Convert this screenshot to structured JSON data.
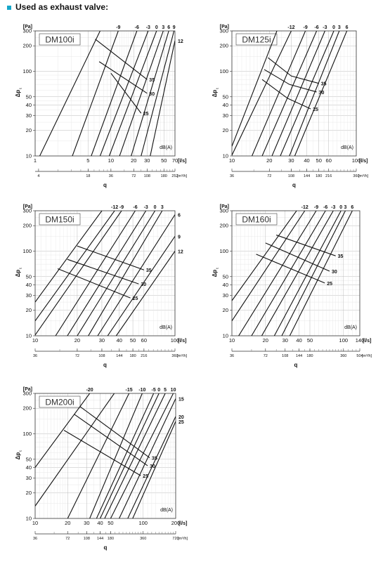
{
  "header": {
    "title": "Used as exhaust valve:",
    "accent_color": "#16a6c9"
  },
  "chart_data": [
    {
      "type": "line",
      "title": "DM100i",
      "ylabel": "Δp t",
      "yunit": "[Pa]",
      "xlabel": "q",
      "xunit": "[l/s]",
      "xunit2": "[m³/h]",
      "ylim": [
        10,
        300
      ],
      "xlim": [
        1,
        70
      ],
      "log": true,
      "yticks": [
        10,
        20,
        30,
        40,
        50,
        100,
        200,
        300
      ],
      "xticks": [
        1,
        5,
        10,
        20,
        30,
        50,
        70
      ],
      "xticks2": [
        {
          "q": 1.11,
          "label": "4"
        },
        {
          "q": 5,
          "label": "18"
        },
        {
          "q": 10,
          "label": "36"
        },
        {
          "q": 20,
          "label": "72"
        },
        {
          "q": 30,
          "label": "108"
        },
        {
          "q": 50,
          "label": "180"
        },
        {
          "q": 70,
          "label": "252"
        }
      ],
      "damper_label": "dB(A)",
      "setting_lines": [
        {
          "label": "",
          "points": [
            [
              1.15,
              10
            ],
            [
              7.2,
              300
            ]
          ]
        },
        {
          "label": "-9",
          "points": [
            [
              3.1,
              10
            ],
            [
              12.5,
              300
            ]
          ]
        },
        {
          "label": "-6",
          "points": [
            [
              5.5,
              10
            ],
            [
              22,
              300
            ]
          ]
        },
        {
          "label": "-3",
          "points": [
            [
              7.2,
              10
            ],
            [
              31,
              300
            ]
          ]
        },
        {
          "label": "0",
          "points": [
            [
              9.5,
              10
            ],
            [
              40,
              300
            ]
          ]
        },
        {
          "label": "3",
          "points": [
            [
              13,
              10
            ],
            [
              49,
              300
            ]
          ]
        },
        {
          "label": "6",
          "points": [
            [
              18.5,
              10
            ],
            [
              58,
              300
            ]
          ]
        },
        {
          "label": "9",
          "points": [
            [
              25,
              10
            ],
            [
              68,
              300
            ]
          ]
        },
        {
          "label": "12",
          "points": [
            [
              33,
              10
            ],
            [
              70,
              230
            ]
          ]
        }
      ],
      "noise_curves": [
        {
          "label": "35",
          "points": [
            [
              6.2,
              240
            ],
            [
              30,
              80
            ]
          ]
        },
        {
          "label": "30",
          "points": [
            [
              7,
              130
            ],
            [
              30,
              55
            ]
          ]
        },
        {
          "label": "25",
          "points": [
            [
              10,
              95
            ],
            [
              25,
              32
            ]
          ]
        }
      ]
    },
    {
      "type": "line",
      "title": "DM125i",
      "ylabel": "Δp t",
      "yunit": "[Pa]",
      "xlabel": "q",
      "xunit": "[l/s]",
      "xunit2": "[m³/h]",
      "ylim": [
        10,
        300
      ],
      "xlim": [
        10,
        100
      ],
      "log": true,
      "yticks": [
        10,
        20,
        30,
        40,
        50,
        100,
        200,
        300
      ],
      "xticks": [
        10,
        20,
        30,
        40,
        50,
        60,
        100
      ],
      "xticks2": [
        {
          "q": 10,
          "label": "36"
        },
        {
          "q": 20,
          "label": "72"
        },
        {
          "q": 30,
          "label": "108"
        },
        {
          "q": 40,
          "label": "144"
        },
        {
          "q": 50,
          "label": "180"
        },
        {
          "q": 60,
          "label": "216"
        },
        {
          "q": 100,
          "label": "360"
        }
      ],
      "damper_label": "dB(A)",
      "setting_lines": [
        {
          "label": "",
          "points": [
            [
              10,
              13
            ],
            [
              23,
              300
            ]
          ]
        },
        {
          "label": "-12",
          "points": [
            [
              10,
              10.2
            ],
            [
              30,
              300
            ]
          ]
        },
        {
          "label": "-9",
          "points": [
            [
              14.5,
              10
            ],
            [
              39,
              300
            ]
          ]
        },
        {
          "label": "-6",
          "points": [
            [
              17.5,
              10
            ],
            [
              48,
              300
            ]
          ]
        },
        {
          "label": "-3",
          "points": [
            [
              21,
              10
            ],
            [
              56,
              300
            ]
          ]
        },
        {
          "label": "0",
          "points": [
            [
              24.5,
              10
            ],
            [
              66,
              300
            ]
          ]
        },
        {
          "label": "3",
          "points": [
            [
              29,
              10
            ],
            [
              73,
              300
            ]
          ]
        },
        {
          "label": "6",
          "points": [
            [
              32,
              10
            ],
            [
              84,
              300
            ]
          ]
        }
      ],
      "noise_curves": [
        {
          "label": "35",
          "points": [
            [
              19.5,
              145
            ],
            [
              30,
              88
            ],
            [
              50,
              72
            ]
          ]
        },
        {
          "label": "30",
          "points": [
            [
              18.2,
              105
            ],
            [
              29,
              70
            ],
            [
              48,
              57
            ]
          ]
        },
        {
          "label": "25",
          "points": [
            [
              17.5,
              80
            ],
            [
              28,
              48
            ],
            [
              43,
              36
            ]
          ]
        }
      ]
    },
    {
      "type": "line",
      "title": "DM150i",
      "ylabel": "Δp t",
      "yunit": "[Pa]",
      "xlabel": "q",
      "xunit": "[l/s]",
      "xunit2": "[m³/h]",
      "ylim": [
        10,
        300
      ],
      "xlim": [
        10,
        100
      ],
      "log": true,
      "yticks": [
        10,
        20,
        30,
        40,
        50,
        100,
        200,
        300
      ],
      "xticks": [
        10,
        20,
        30,
        40,
        50,
        60,
        100
      ],
      "xticks2": [
        {
          "q": 10,
          "label": "36"
        },
        {
          "q": 20,
          "label": "72"
        },
        {
          "q": 30,
          "label": "108"
        },
        {
          "q": 40,
          "label": "144"
        },
        {
          "q": 50,
          "label": "180"
        },
        {
          "q": 60,
          "label": "216"
        },
        {
          "q": 100,
          "label": "360"
        }
      ],
      "damper_label": "dB(A)",
      "setting_lines": [
        {
          "label": "",
          "points": [
            [
              10,
              25
            ],
            [
              30,
              300
            ]
          ]
        },
        {
          "label": "-12",
          "points": [
            [
              10,
              15
            ],
            [
              37,
              300
            ]
          ]
        },
        {
          "label": "-9",
          "points": [
            [
              10,
              10.2
            ],
            [
              41.5,
              300
            ]
          ]
        },
        {
          "label": "-6",
          "points": [
            [
              14,
              10
            ],
            [
              52,
              300
            ]
          ]
        },
        {
          "label": "-3",
          "points": [
            [
              17,
              10
            ],
            [
              62,
              300
            ]
          ]
        },
        {
          "label": "0",
          "points": [
            [
              20,
              10
            ],
            [
              72,
              300
            ]
          ]
        },
        {
          "label": "3",
          "points": [
            [
              24,
              10
            ],
            [
              81,
              300
            ]
          ]
        },
        {
          "label": "6",
          "points": [
            [
              28,
              10
            ],
            [
              100,
              270
            ]
          ]
        },
        {
          "label": "9",
          "points": [
            [
              33,
              10
            ],
            [
              100,
              150
            ]
          ]
        },
        {
          "label": "12",
          "points": [
            [
              38,
              10
            ],
            [
              100,
              100
            ]
          ]
        }
      ],
      "noise_curves": [
        {
          "label": "35",
          "points": [
            [
              20,
              115
            ],
            [
              60,
              60
            ]
          ]
        },
        {
          "label": "30",
          "points": [
            [
              17,
              80
            ],
            [
              55,
              41
            ]
          ]
        },
        {
          "label": "25",
          "points": [
            [
              14.5,
              62
            ],
            [
              48,
              28
            ]
          ]
        }
      ]
    },
    {
      "type": "line",
      "title": "DM160i",
      "ylabel": "Δp t",
      "yunit": "[Pa]",
      "xlabel": "q",
      "xunit": "[l/s]",
      "xunit2": "[m³/h]",
      "ylim": [
        10,
        300
      ],
      "xlim": [
        10,
        140
      ],
      "log": true,
      "yticks": [
        10,
        20,
        30,
        40,
        50,
        100,
        200,
        300
      ],
      "xticks": [
        10,
        20,
        30,
        40,
        50,
        100,
        140
      ],
      "xticks2": [
        {
          "q": 10,
          "label": "36"
        },
        {
          "q": 20,
          "label": "72"
        },
        {
          "q": 30,
          "label": "108"
        },
        {
          "q": 40,
          "label": "144"
        },
        {
          "q": 50,
          "label": "180"
        },
        {
          "q": 100,
          "label": "360"
        },
        {
          "q": 140,
          "label": "504"
        }
      ],
      "damper_label": "dB(A)",
      "setting_lines": [
        {
          "label": "",
          "points": [
            [
              10,
              26
            ],
            [
              38,
              300
            ]
          ]
        },
        {
          "label": "-12",
          "points": [
            [
              10,
              15
            ],
            [
              45,
              300
            ]
          ]
        },
        {
          "label": "-9",
          "points": [
            [
              11.5,
              10
            ],
            [
              57,
              300
            ]
          ]
        },
        {
          "label": "-6",
          "points": [
            [
              15,
              10
            ],
            [
              69,
              300
            ]
          ]
        },
        {
          "label": "-3",
          "points": [
            [
              18.5,
              10
            ],
            [
              81,
              300
            ]
          ]
        },
        {
          "label": "0",
          "points": [
            [
              24,
              10
            ],
            [
              95,
              300
            ]
          ]
        },
        {
          "label": "3",
          "points": [
            [
              28,
              10
            ],
            [
              104,
              300
            ]
          ]
        },
        {
          "label": "6",
          "points": [
            [
              33,
              10
            ],
            [
              120,
              300
            ]
          ]
        }
      ],
      "noise_curves": [
        {
          "label": "35",
          "points": [
            [
              25,
              155
            ],
            [
              85,
              88
            ]
          ]
        },
        {
          "label": "30",
          "points": [
            [
              20,
              125
            ],
            [
              75,
              58
            ]
          ]
        },
        {
          "label": "25",
          "points": [
            [
              16.5,
              92
            ],
            [
              68,
              42
            ]
          ]
        }
      ]
    },
    {
      "type": "line",
      "title": "DM200i",
      "ylabel": "Δp t",
      "yunit": "[Pa]",
      "xlabel": "q",
      "xunit": "[l/s]",
      "xunit2": "[m³/h]",
      "ylim": [
        10,
        300
      ],
      "xlim": [
        10,
        200
      ],
      "log": true,
      "yticks": [
        10,
        20,
        30,
        40,
        50,
        100,
        200,
        300
      ],
      "xticks": [
        10,
        20,
        30,
        40,
        50,
        100,
        200
      ],
      "xticks2": [
        {
          "q": 10,
          "label": "36"
        },
        {
          "q": 20,
          "label": "72"
        },
        {
          "q": 30,
          "label": "108"
        },
        {
          "q": 40,
          "label": "144"
        },
        {
          "q": 50,
          "label": "180"
        },
        {
          "q": 100,
          "label": "360"
        },
        {
          "q": 200,
          "label": "720"
        }
      ],
      "damper_label": "dB(A)",
      "setting_lines": [
        {
          "label": "",
          "points": [
            [
              10,
              14
            ],
            [
              54,
              300
            ]
          ]
        },
        {
          "label": "-20",
          "points": [
            [
              10,
              40
            ],
            [
              32,
              300
            ]
          ]
        },
        {
          "label": "-15",
          "points": [
            [
              20,
              10
            ],
            [
              74,
              300
            ]
          ]
        },
        {
          "label": "-10",
          "points": [
            [
              32,
              10
            ],
            [
              98,
              300
            ]
          ]
        },
        {
          "label": "-5",
          "points": [
            [
              37,
              10
            ],
            [
              125,
              300
            ]
          ]
        },
        {
          "label": "0",
          "points": [
            [
              40,
              10
            ],
            [
              140,
              300
            ]
          ]
        },
        {
          "label": "5",
          "points": [
            [
              44,
              10
            ],
            [
              160,
              300
            ]
          ]
        },
        {
          "label": "10",
          "points": [
            [
              50,
              10
            ],
            [
              190,
              300
            ]
          ]
        },
        {
          "label": "15",
          "points": [
            [
              60,
              10
            ],
            [
              200,
              260
            ]
          ]
        },
        {
          "label": "20",
          "points": [
            [
              72,
              10
            ],
            [
              200,
              160
            ]
          ]
        },
        {
          "label": "25",
          "points": [
            [
              80,
              10
            ],
            [
              200,
              140
            ]
          ]
        }
      ],
      "noise_curves": [
        {
          "label": "35",
          "points": [
            [
              26,
              210
            ],
            [
              115,
              52
            ]
          ]
        },
        {
          "label": "30",
          "points": [
            [
              23,
              170
            ],
            [
              110,
              42
            ]
          ]
        },
        {
          "label": "25",
          "points": [
            [
              18.5,
              110
            ],
            [
              95,
              32
            ]
          ]
        }
      ]
    }
  ]
}
